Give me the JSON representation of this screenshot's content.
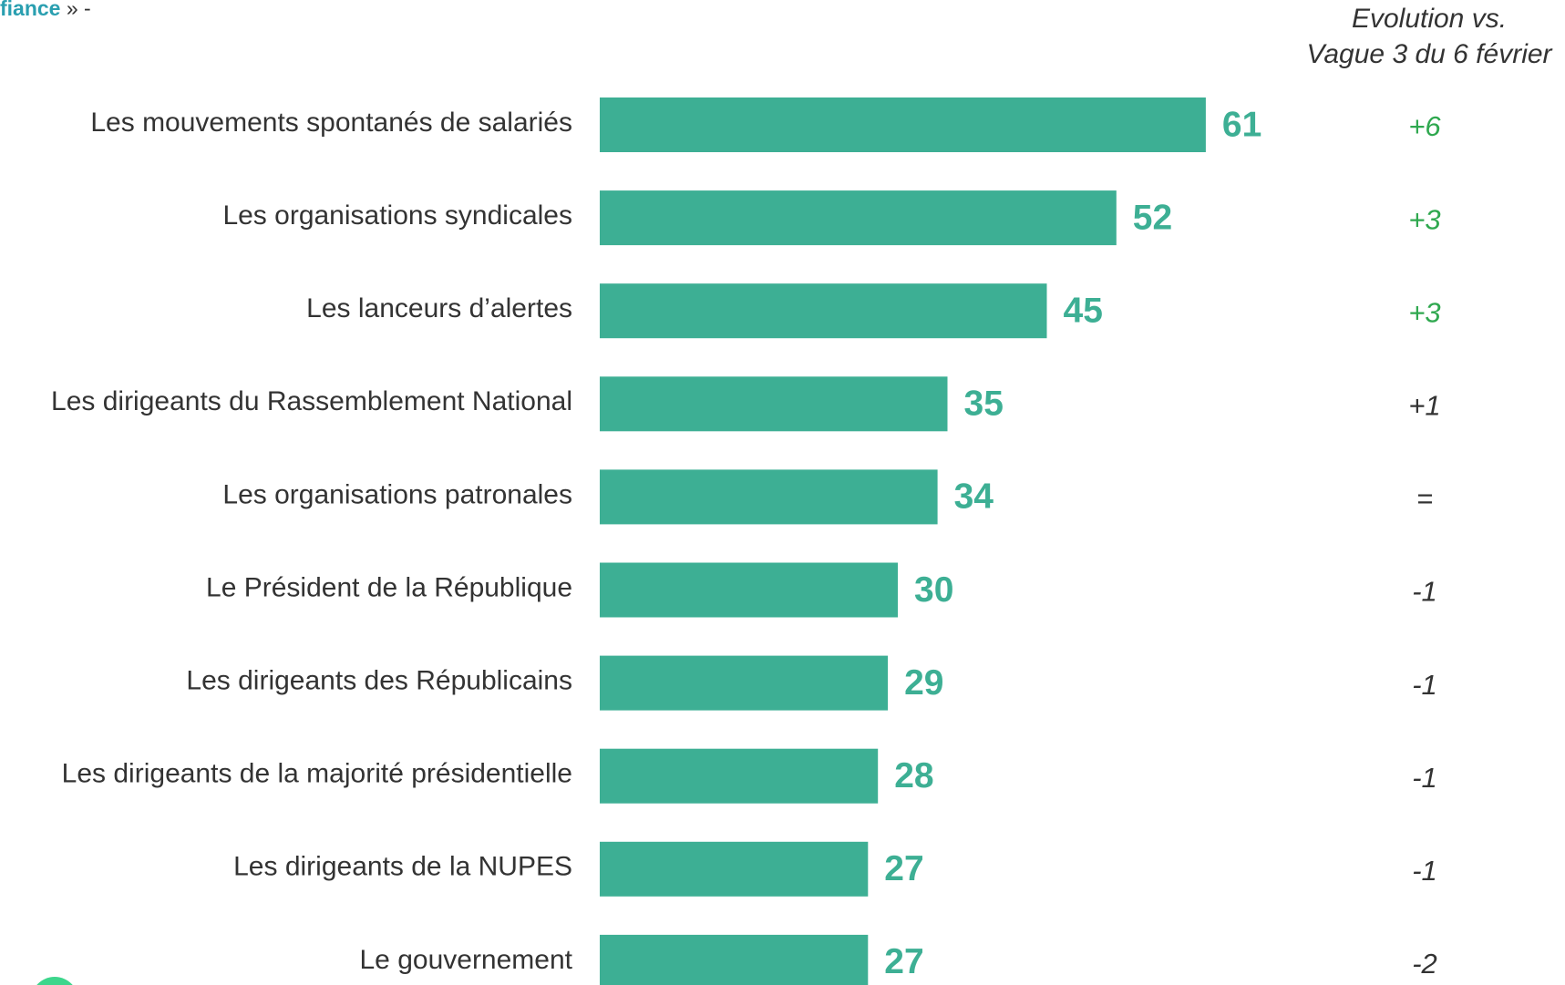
{
  "chart_data": {
    "type": "hbar",
    "header_fragment": {
      "bold": "fiance",
      "rest": "» -"
    },
    "evolution_title": [
      "Evolution vs.",
      "Vague 3 du 6 février"
    ],
    "categories": [
      "Les mouvements spontanés de salariés",
      "Les organisations syndicales",
      "Les lanceurs d’alertes",
      "Les dirigeants du Rassemblement National",
      "Les organisations patronales",
      "Le Président de la République",
      "Les dirigeants des Républicains",
      "Les dirigeants de la majorité présidentielle",
      "Les dirigeants de la NUPES",
      "Le gouvernement"
    ],
    "values": [
      61,
      52,
      45,
      35,
      34,
      30,
      29,
      28,
      27,
      27
    ],
    "color": "#3daf94",
    "evolution": [
      "+6",
      "+3",
      "+3",
      "+1",
      "=",
      "-1",
      "-1",
      "-1",
      "-1",
      "-2"
    ],
    "evolution_colors": [
      "#2fa84f",
      "#2fa84f",
      "#2fa84f",
      "#333333",
      "#333333",
      "#333333",
      "#333333",
      "#333333",
      "#333333",
      "#333333"
    ]
  }
}
